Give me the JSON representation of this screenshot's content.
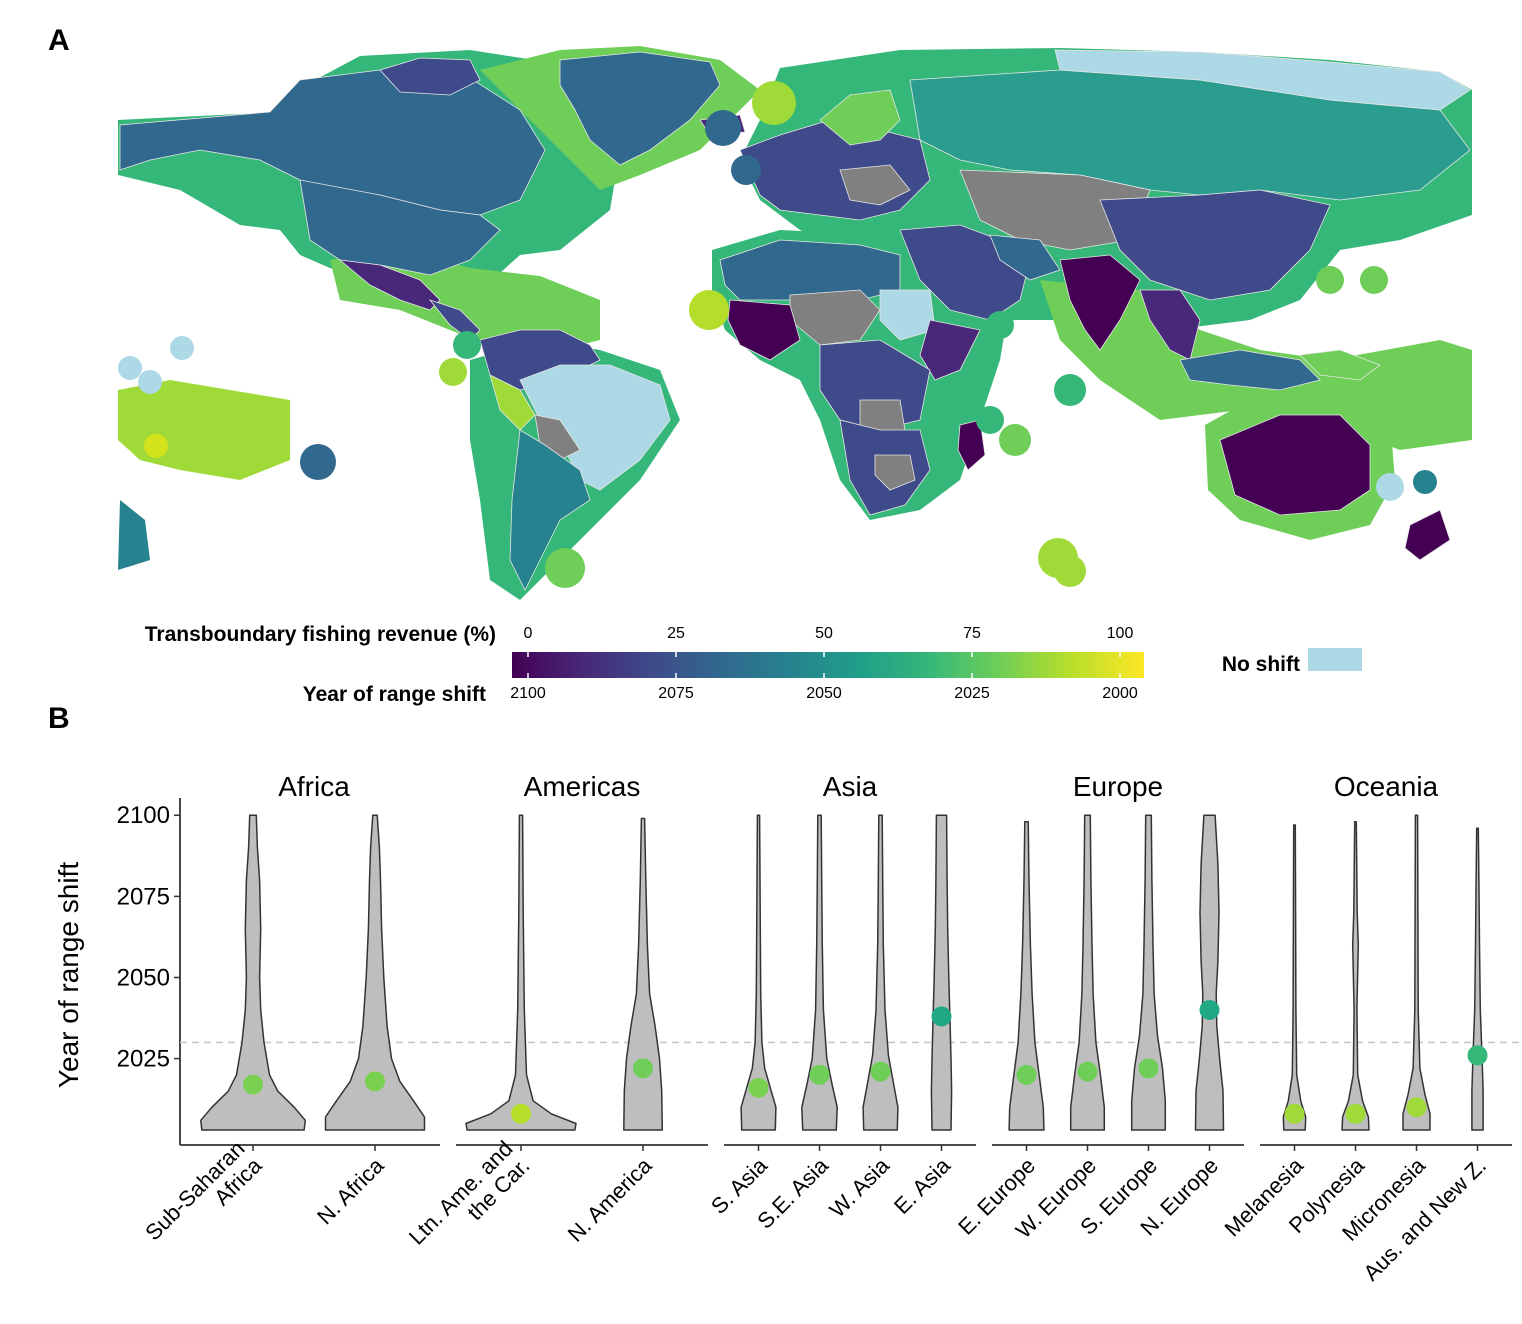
{
  "panel_a": {
    "label": "A",
    "legend": {
      "top_title": "Transboundary fishing revenue (%)",
      "bottom_title": "Year of range shift",
      "top_ticks": [
        "0",
        "25",
        "50",
        "75",
        "100"
      ],
      "bottom_ticks": [
        "2100",
        "2075",
        "2050",
        "2025",
        "2000"
      ],
      "no_shift_label": "No shift",
      "gradient_colors": [
        "#440154",
        "#482878",
        "#3e4a89",
        "#31688e",
        "#26828e",
        "#1f9e89",
        "#35b779",
        "#6ece58",
        "#b5de2b",
        "#fde725"
      ],
      "no_shift_color": "#add8e6"
    },
    "colors": {
      "no_data": "#808080",
      "ocean": "#ffffff",
      "country_border": "#e8e8e8"
    }
  },
  "panel_b": {
    "label": "B"
  },
  "chart_data": {
    "type": "violin",
    "ylabel": "Year of range shift",
    "ylim": [
      2003,
      2101
    ],
    "yticks": [
      2025,
      2050,
      2075,
      2100
    ],
    "reference_line": 2030,
    "violin_fill": "#bebebe",
    "facets": [
      {
        "title": "Africa",
        "groups": [
          {
            "label": "Sub-Saharan\nAfrica",
            "median": 2017,
            "median_color": "#7ad151",
            "width_profile": [
              [
                2003,
                0.93
              ],
              [
                2006,
                0.95
              ],
              [
                2010,
                0.75
              ],
              [
                2015,
                0.45
              ],
              [
                2020,
                0.3
              ],
              [
                2030,
                0.2
              ],
              [
                2040,
                0.14
              ],
              [
                2050,
                0.12
              ],
              [
                2065,
                0.14
              ],
              [
                2080,
                0.12
              ],
              [
                2090,
                0.08
              ],
              [
                2100,
                0.06
              ]
            ]
          },
          {
            "label": "N. Africa",
            "median": 2018,
            "median_color": "#7ad151",
            "width_profile": [
              [
                2003,
                0.9
              ],
              [
                2007,
                0.9
              ],
              [
                2012,
                0.7
              ],
              [
                2018,
                0.45
              ],
              [
                2025,
                0.3
              ],
              [
                2035,
                0.22
              ],
              [
                2050,
                0.16
              ],
              [
                2065,
                0.12
              ],
              [
                2080,
                0.1
              ],
              [
                2090,
                0.08
              ],
              [
                2100,
                0.04
              ]
            ]
          }
        ]
      },
      {
        "title": "Americas",
        "groups": [
          {
            "label": "Ltn. Ame. and\nthe Car.",
            "median": 2008,
            "median_color": "#b5de2b",
            "width_profile": [
              [
                2003,
                0.98
              ],
              [
                2005,
                1.0
              ],
              [
                2008,
                0.55
              ],
              [
                2012,
                0.22
              ],
              [
                2020,
                0.1
              ],
              [
                2040,
                0.06
              ],
              [
                2070,
                0.04
              ],
              [
                2100,
                0.03
              ]
            ]
          },
          {
            "label": "N. America",
            "median": 2022,
            "median_color": "#6ece58",
            "width_profile": [
              [
                2003,
                0.35
              ],
              [
                2015,
                0.34
              ],
              [
                2025,
                0.3
              ],
              [
                2035,
                0.22
              ],
              [
                2045,
                0.12
              ],
              [
                2060,
                0.08
              ],
              [
                2080,
                0.05
              ],
              [
                2099,
                0.03
              ]
            ]
          }
        ]
      },
      {
        "title": "Asia",
        "groups": [
          {
            "label": "S. Asia",
            "median": 2016,
            "median_color": "#7ad151",
            "width_profile": [
              [
                2003,
                0.6
              ],
              [
                2010,
                0.62
              ],
              [
                2016,
                0.42
              ],
              [
                2022,
                0.22
              ],
              [
                2030,
                0.12
              ],
              [
                2045,
                0.08
              ],
              [
                2070,
                0.06
              ],
              [
                2100,
                0.04
              ]
            ]
          },
          {
            "label": "S.E. Asia",
            "median": 2020,
            "median_color": "#6ece58",
            "width_profile": [
              [
                2003,
                0.6
              ],
              [
                2010,
                0.63
              ],
              [
                2017,
                0.45
              ],
              [
                2025,
                0.26
              ],
              [
                2040,
                0.14
              ],
              [
                2060,
                0.1
              ],
              [
                2080,
                0.08
              ],
              [
                2100,
                0.06
              ]
            ]
          },
          {
            "label": "W. Asia",
            "median": 2021,
            "median_color": "#6ece58",
            "width_profile": [
              [
                2003,
                0.6
              ],
              [
                2010,
                0.62
              ],
              [
                2018,
                0.45
              ],
              [
                2026,
                0.28
              ],
              [
                2040,
                0.16
              ],
              [
                2060,
                0.1
              ],
              [
                2080,
                0.08
              ],
              [
                2100,
                0.06
              ]
            ]
          },
          {
            "label": "E. Asia",
            "median": 2038,
            "median_color": "#22a884",
            "width_profile": [
              [
                2003,
                0.34
              ],
              [
                2015,
                0.36
              ],
              [
                2025,
                0.34
              ],
              [
                2038,
                0.3
              ],
              [
                2050,
                0.26
              ],
              [
                2065,
                0.22
              ],
              [
                2080,
                0.2
              ],
              [
                2100,
                0.18
              ]
            ]
          }
        ]
      },
      {
        "title": "Europe",
        "groups": [
          {
            "label": "E. Europe",
            "median": 2020,
            "median_color": "#6ece58",
            "width_profile": [
              [
                2003,
                0.62
              ],
              [
                2010,
                0.6
              ],
              [
                2020,
                0.45
              ],
              [
                2030,
                0.3
              ],
              [
                2045,
                0.2
              ],
              [
                2060,
                0.14
              ],
              [
                2080,
                0.09
              ],
              [
                2098,
                0.06
              ]
            ]
          },
          {
            "label": "W. Europe",
            "median": 2021,
            "median_color": "#6ece58",
            "width_profile": [
              [
                2003,
                0.6
              ],
              [
                2010,
                0.6
              ],
              [
                2020,
                0.46
              ],
              [
                2030,
                0.3
              ],
              [
                2045,
                0.2
              ],
              [
                2060,
                0.16
              ],
              [
                2080,
                0.12
              ],
              [
                2100,
                0.1
              ]
            ]
          },
          {
            "label": "S. Europe",
            "median": 2022,
            "median_color": "#6ece58",
            "width_profile": [
              [
                2003,
                0.6
              ],
              [
                2012,
                0.6
              ],
              [
                2022,
                0.5
              ],
              [
                2032,
                0.32
              ],
              [
                2045,
                0.2
              ],
              [
                2060,
                0.16
              ],
              [
                2080,
                0.12
              ],
              [
                2100,
                0.1
              ]
            ]
          },
          {
            "label": "N. Europe",
            "median": 2040,
            "median_color": "#22a884",
            "width_profile": [
              [
                2003,
                0.5
              ],
              [
                2015,
                0.48
              ],
              [
                2025,
                0.36
              ],
              [
                2035,
                0.26
              ],
              [
                2045,
                0.24
              ],
              [
                2055,
                0.3
              ],
              [
                2070,
                0.34
              ],
              [
                2085,
                0.3
              ],
              [
                2100,
                0.2
              ]
            ]
          }
        ]
      },
      {
        "title": "Oceania",
        "groups": [
          {
            "label": "Melanesia",
            "median": 2008,
            "median_color": "#a0da39",
            "width_profile": [
              [
                2003,
                0.38
              ],
              [
                2007,
                0.4
              ],
              [
                2012,
                0.22
              ],
              [
                2020,
                0.08
              ],
              [
                2040,
                0.05
              ],
              [
                2070,
                0.04
              ],
              [
                2097,
                0.03
              ]
            ]
          },
          {
            "label": "Polynesia",
            "median": 2008,
            "median_color": "#a0da39",
            "width_profile": [
              [
                2003,
                0.48
              ],
              [
                2007,
                0.46
              ],
              [
                2012,
                0.25
              ],
              [
                2020,
                0.08
              ],
              [
                2040,
                0.05
              ],
              [
                2060,
                0.1
              ],
              [
                2070,
                0.06
              ],
              [
                2098,
                0.03
              ]
            ]
          },
          {
            "label": "Micronesia",
            "median": 2010,
            "median_color": "#a0da39",
            "width_profile": [
              [
                2003,
                0.48
              ],
              [
                2008,
                0.48
              ],
              [
                2014,
                0.3
              ],
              [
                2022,
                0.12
              ],
              [
                2040,
                0.06
              ],
              [
                2070,
                0.05
              ],
              [
                2100,
                0.04
              ]
            ]
          },
          {
            "label": "Aus. and New Z.",
            "median": 2026,
            "median_color": "#35b779",
            "width_profile": [
              [
                2003,
                0.2
              ],
              [
                2015,
                0.2
              ],
              [
                2026,
                0.16
              ],
              [
                2040,
                0.1
              ],
              [
                2060,
                0.07
              ],
              [
                2080,
                0.05
              ],
              [
                2096,
                0.03
              ]
            ]
          }
        ]
      }
    ]
  }
}
